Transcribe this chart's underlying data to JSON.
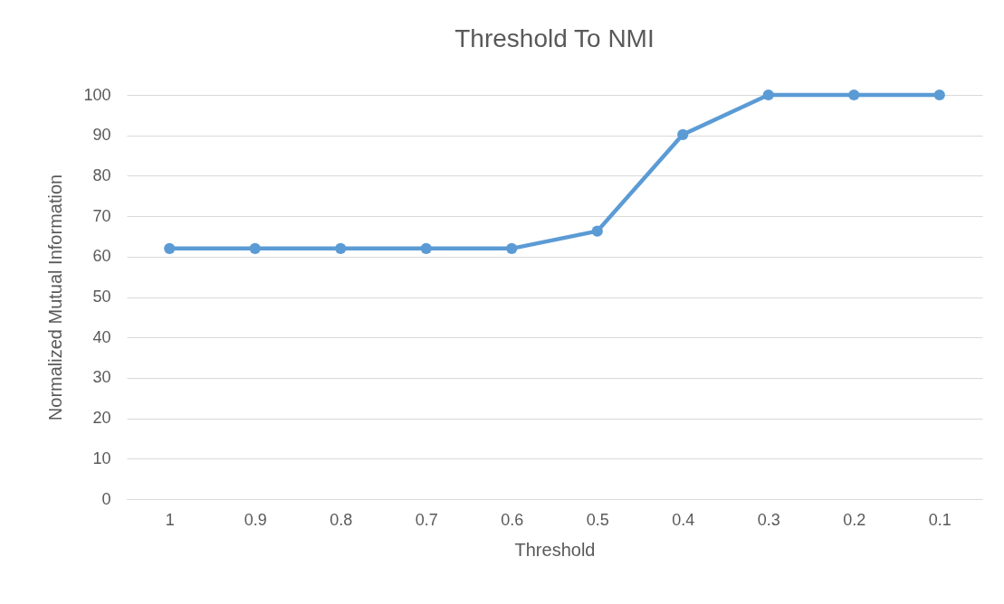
{
  "chart_data": {
    "type": "line",
    "title": "Threshold To NMI",
    "xlabel": "Threshold",
    "ylabel": "Normalized Mutual Information",
    "categories": [
      "1",
      "0.9",
      "0.8",
      "0.7",
      "0.6",
      "0.5",
      "0.4",
      "0.3",
      "0.2",
      "0.1"
    ],
    "series": [
      {
        "color": "#5b9bd5",
        "values": [
          62,
          62,
          62,
          62,
          62,
          66.3,
          90.2,
          100,
          100,
          100
        ]
      }
    ],
    "ylim": [
      0,
      100
    ],
    "yticks": [
      0,
      10,
      20,
      30,
      40,
      50,
      60,
      70,
      80,
      90,
      100
    ],
    "grid": "y",
    "marker": "circle",
    "line_style": "solid"
  }
}
